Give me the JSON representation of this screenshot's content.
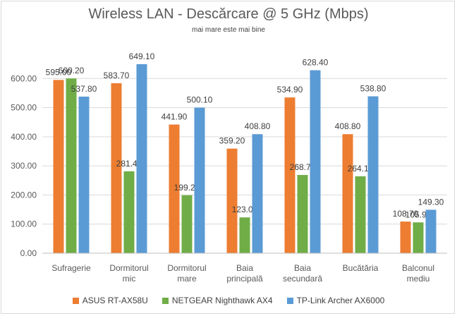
{
  "chart_data": {
    "type": "bar",
    "title": "Wireless LAN - Descărcare @ 5 GHz (Mbps)",
    "subtitle": "mai mare este mai bine",
    "categories": [
      [
        "Sufragerie"
      ],
      [
        "Dormitorul",
        "mic"
      ],
      [
        "Dormitorul",
        "mare"
      ],
      [
        "Baia",
        "principală"
      ],
      [
        "Baia",
        "secundară"
      ],
      [
        "Bucătăria"
      ],
      [
        "Balconul",
        "mediu"
      ]
    ],
    "series": [
      {
        "name": "ASUS RT-AX58U",
        "color": "#ed7d31",
        "values": [
          595.0,
          583.7,
          441.9,
          359.2,
          534.9,
          408.8,
          108.7
        ]
      },
      {
        "name": "NETGEAR Nighthawk AX4",
        "color": "#70ad47",
        "values": [
          600.2,
          281.4,
          199.2,
          123.0,
          268.7,
          264.1,
          105.9
        ]
      },
      {
        "name": "TP-Link Archer AX6000",
        "color": "#5b9bd5",
        "values": [
          537.8,
          649.1,
          500.1,
          408.8,
          628.4,
          538.8,
          149.3
        ]
      }
    ],
    "yticks": [
      "0.00",
      "100.00",
      "200.00",
      "300.00",
      "400.00",
      "500.00",
      "600.00"
    ],
    "ylim": [
      0,
      700
    ],
    "grid": true,
    "legend_position": "bottom"
  }
}
